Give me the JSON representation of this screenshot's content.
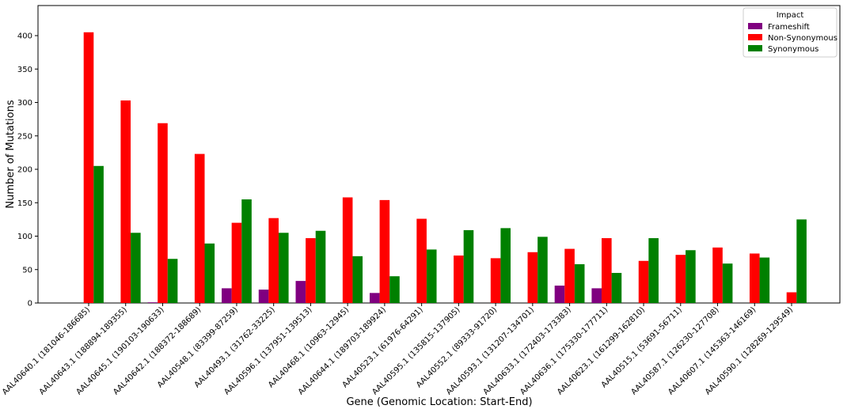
{
  "chart_data": {
    "type": "bar",
    "xlabel": "Gene (Genomic Location: Start-End)",
    "ylabel": "Number of Mutations",
    "ylim": [
      0,
      445
    ],
    "yticks": [
      0,
      50,
      100,
      150,
      200,
      250,
      300,
      350,
      400
    ],
    "grid": false,
    "legend": {
      "title": "Impact",
      "placement": "top-right"
    },
    "categories": [
      "AAL40640.1 (181046-186685)",
      "AAL40643.1 (188894-189355)",
      "AAL40645.1 (190103-190633)",
      "AAL40642.1 (188372-188689)",
      "AAL40548.1 (83399-87259)",
      "AAL40493.1 (31762-33225)",
      "AAL40596.1 (137951-139513)",
      "AAL40468.1 (10963-12945)",
      "AAL40644.1 (189703-189924)",
      "AAL40523.1 (61976-64291)",
      "AAL40595.1 (135815-137905)",
      "AAL40552.1 (89333-91720)",
      "AAL40593.1 (131207-134701)",
      "AAL40633.1 (172403-173383)",
      "AAL40636.1 (175330-177711)",
      "AAL40623.1 (161299-162810)",
      "AAL40515.1 (53691-56711)",
      "AAL40587.1 (126230-127708)",
      "AAL40607.1 (145363-146169)",
      "AAL40590.1 (128269-129549)"
    ],
    "series": [
      {
        "name": "Frameshift",
        "color": "#800080",
        "values": [
          0,
          0,
          1,
          0,
          22,
          20,
          33,
          0,
          15,
          0,
          0,
          0,
          0,
          26,
          22,
          0,
          0,
          0,
          0,
          0
        ]
      },
      {
        "name": "Non-Synonymous",
        "color": "#ff0000",
        "values": [
          405,
          303,
          269,
          223,
          120,
          127,
          97,
          158,
          154,
          126,
          71,
          67,
          76,
          81,
          97,
          63,
          72,
          83,
          74,
          16
        ]
      },
      {
        "name": "Synonymous",
        "color": "#008000",
        "values": [
          205,
          105,
          66,
          89,
          155,
          105,
          108,
          70,
          40,
          80,
          109,
          112,
          99,
          58,
          45,
          97,
          79,
          59,
          68,
          125
        ]
      }
    ]
  }
}
